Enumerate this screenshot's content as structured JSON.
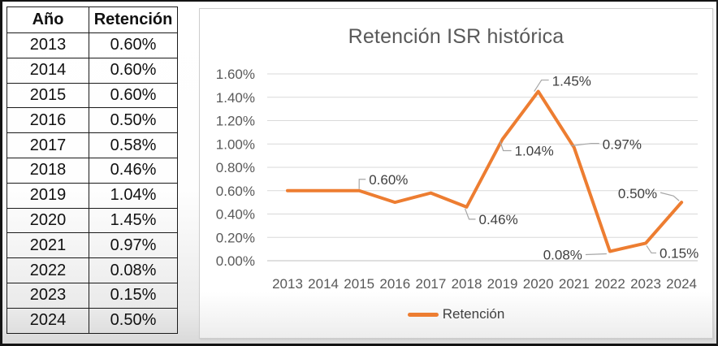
{
  "table": {
    "headers": [
      "Año",
      "Retención"
    ],
    "rows": [
      [
        "2013",
        "0.60%"
      ],
      [
        "2014",
        "0.60%"
      ],
      [
        "2015",
        "0.60%"
      ],
      [
        "2016",
        "0.50%"
      ],
      [
        "2017",
        "0.58%"
      ],
      [
        "2018",
        "0.46%"
      ],
      [
        "2019",
        "1.04%"
      ],
      [
        "2020",
        "1.45%"
      ],
      [
        "2021",
        "0.97%"
      ],
      [
        "2022",
        "0.08%"
      ],
      [
        "2023",
        "0.15%"
      ],
      [
        "2024",
        "0.50%"
      ]
    ]
  },
  "chart": {
    "yticks_top_to_bottom": [
      "1.60%",
      "1.40%",
      "1.20%",
      "1.00%",
      "0.80%",
      "0.60%",
      "0.40%",
      "0.20%",
      "0.00%"
    ]
  },
  "chart_data": {
    "type": "line",
    "title": "Retención ISR histórica",
    "categories": [
      "2013",
      "2014",
      "2015",
      "2016",
      "2017",
      "2018",
      "2019",
      "2020",
      "2021",
      "2022",
      "2023",
      "2024"
    ],
    "series": [
      {
        "name": "Retención",
        "values": [
          0.6,
          0.6,
          0.6,
          0.5,
          0.58,
          0.46,
          1.04,
          1.45,
          0.97,
          0.08,
          0.15,
          0.5
        ]
      }
    ],
    "unit": "%",
    "point_labels": [
      {
        "category": "2015",
        "text": "0.60%"
      },
      {
        "category": "2018",
        "text": "0.46%"
      },
      {
        "category": "2019",
        "text": "1.04%"
      },
      {
        "category": "2020",
        "text": "1.45%"
      },
      {
        "category": "2021",
        "text": "0.97%"
      },
      {
        "category": "2022",
        "text": "0.08%"
      },
      {
        "category": "2023",
        "text": "0.15%"
      },
      {
        "category": "2024",
        "text": "0.50%"
      }
    ],
    "ylim": [
      0,
      1.6
    ],
    "ytick_step": 0.2,
    "grid": true,
    "legend_position": "bottom",
    "line_color": "#ED7D31",
    "colors": {
      "grid": "#D9D9D9",
      "axis_line": "#BFBFBF",
      "axis_text": "#595959",
      "title": "#595959",
      "data_label": "#3F3F3F",
      "leader": "#A6A6A6"
    }
  }
}
